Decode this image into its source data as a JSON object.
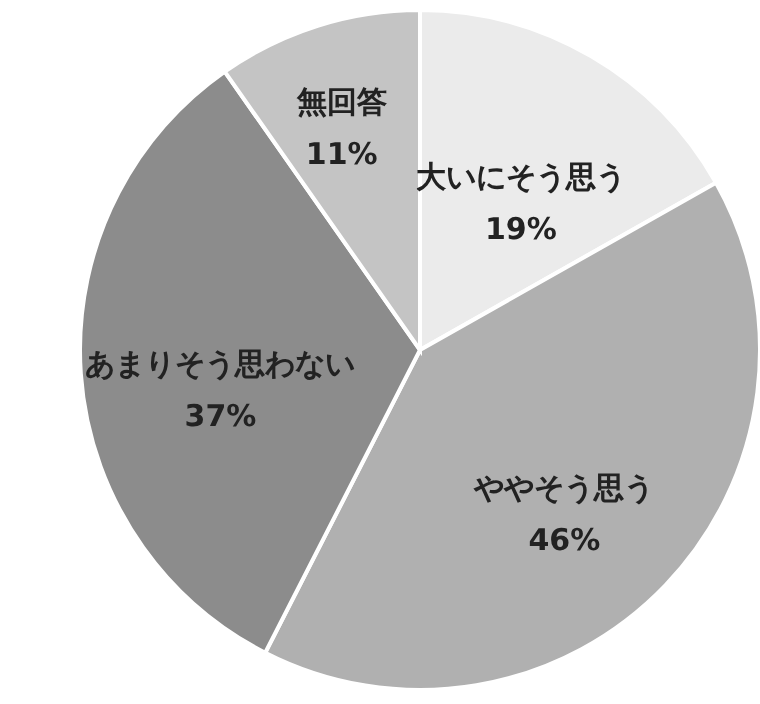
{
  "chart_data": {
    "type": "pie",
    "categories": [
      "大いにそう思う",
      "ややそう思う",
      "あまりそう思わない",
      "無回答"
    ],
    "values": [
      19,
      46,
      37,
      11
    ],
    "value_labels": [
      "19%",
      "46%",
      "37%",
      "11%"
    ],
    "colors": [
      "#ebebeb",
      "#b0b0b0",
      "#8c8c8c",
      "#c4c4c4"
    ]
  }
}
